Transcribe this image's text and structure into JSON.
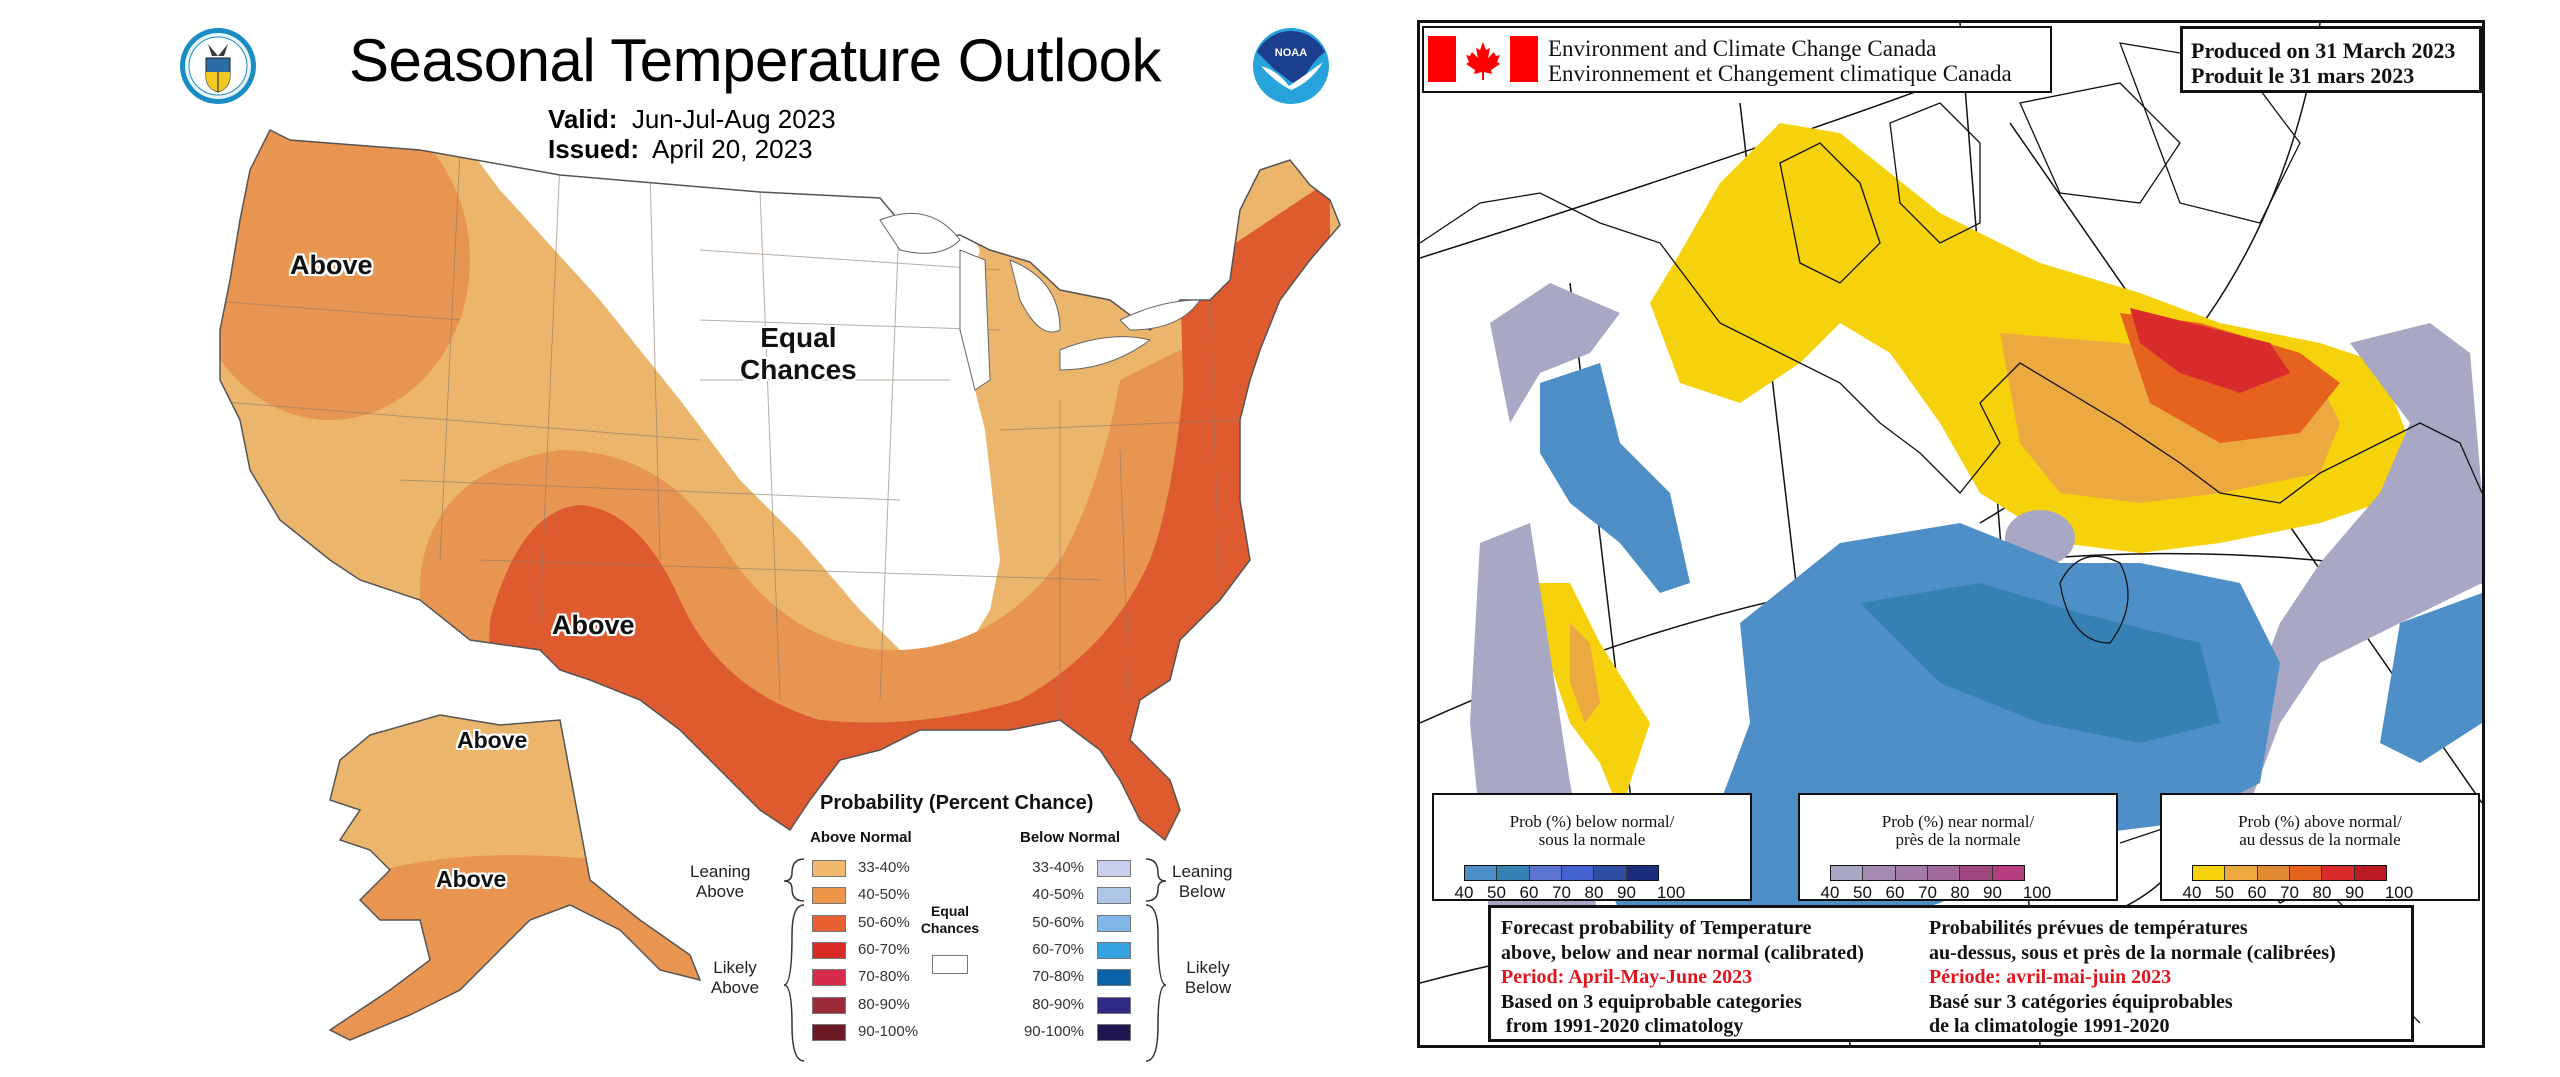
{
  "noaa_outlook": {
    "title": "Seasonal Temperature Outlook",
    "valid_label": "Valid:",
    "valid_value": "Jun-Jul-Aug 2023",
    "issued_label": "Issued:",
    "issued_value": "April 20, 2023",
    "logos": {
      "left": "doc-seal-icon",
      "right": "noaa-logo-icon",
      "noaa_text": "NOAA"
    },
    "map_labels": {
      "northwest": "Above",
      "equal_chances_line1": "Equal",
      "equal_chances_line2": "Chances",
      "southwest": "Above",
      "alaska_north": "Above",
      "alaska_south": "Above"
    },
    "legend": {
      "title": "Probability (Percent Chance)",
      "above_header": "Above Normal",
      "below_header": "Below Normal",
      "equal_line1": "Equal",
      "equal_line2": "Chances",
      "leaning_above": [
        "Leaning",
        "Above"
      ],
      "likely_above": [
        "Likely",
        "Above"
      ],
      "leaning_below": [
        "Leaning",
        "Below"
      ],
      "likely_below": [
        "Likely",
        "Below"
      ],
      "above": [
        {
          "label": "33-40%",
          "color": "#f0b96b"
        },
        {
          "label": "40-50%",
          "color": "#ed9649"
        },
        {
          "label": "50-60%",
          "color": "#e8602f"
        },
        {
          "label": "60-70%",
          "color": "#d92a25"
        },
        {
          "label": "70-80%",
          "color": "#d62b4b"
        },
        {
          "label": "80-90%",
          "color": "#9b2d3a"
        },
        {
          "label": "90-100%",
          "color": "#6a1a24"
        }
      ],
      "below": [
        {
          "label": "33-40%",
          "color": "#c9cfec"
        },
        {
          "label": "40-50%",
          "color": "#aec6e8"
        },
        {
          "label": "50-60%",
          "color": "#80b7e6"
        },
        {
          "label": "60-70%",
          "color": "#36a2e2"
        },
        {
          "label": "70-80%",
          "color": "#0a62a8"
        },
        {
          "label": "80-90%",
          "color": "#302a85"
        },
        {
          "label": "90-100%",
          "color": "#1d1650"
        }
      ]
    },
    "region_colors": {
      "leaning_above": "#ebb66c",
      "above_40_50": "#e89552",
      "above_50_60": "#de5a2f",
      "equal_chances": "#ffffff"
    }
  },
  "eccc_outlook": {
    "agency_en": "Environment and Climate Change Canada",
    "agency_fr": "Environnement et Changement climatique Canada",
    "produced_en": "Produced on 31 March 2023",
    "produced_fr": "Produit le 31 mars 2023",
    "flag_icon": "canada-flag-icon",
    "legends": [
      {
        "title_line1": "Prob (%) below normal/",
        "title_line2": "sous la normale",
        "colors": [
          "#4e8fc8",
          "#3681b3",
          "#5e74d1",
          "#4462d2",
          "#2e4ea2",
          "#1c2c7c"
        ],
        "ticks": [
          "40",
          "50",
          "60",
          "70",
          "80",
          "90",
          "100"
        ]
      },
      {
        "title_line1": "Prob (%) near normal/",
        "title_line2": "près de la normale",
        "colors": [
          "#a8a7c4",
          "#a48bb4",
          "#a37ba6",
          "#a06a9a",
          "#a2467f",
          "#b63e7f"
        ],
        "ticks": [
          "40",
          "50",
          "60",
          "70",
          "80",
          "90",
          "100"
        ]
      },
      {
        "title_line1": "Prob (%) above normal/",
        "title_line2": "au dessus de la normale",
        "colors": [
          "#f5d20c",
          "#eca940",
          "#e38a35",
          "#e5621f",
          "#d92a2c",
          "#bb1c23"
        ],
        "ticks": [
          "40",
          "50",
          "60",
          "70",
          "80",
          "90",
          "100"
        ]
      }
    ],
    "info_en": {
      "line1": "Forecast probability of Temperature",
      "line2": "above, below and near normal (calibrated)",
      "period": "Period: April-May-June 2023",
      "line4": "Based on 3 equiprobable categories",
      "line5": " from 1991-2020 climatology"
    },
    "info_fr": {
      "line1": "Probabilités prévues de températures",
      "line2": "au-dessus, sous et près de la normale (calibrées)",
      "period": "Période: avril-mai-juin 2023",
      "line4": "Basé sur 3 catégories équiprobables",
      "line5": "de la climatologie 1991-2020"
    },
    "region_colors": {
      "above_40_50": "#f5d20c",
      "above_50_60": "#eca940",
      "above_70_80": "#e5621f",
      "above_80_90": "#d92a2c",
      "below_40_50": "#4e8fc8",
      "below_50_60": "#3681b3",
      "below_60_70": "#5e74d1",
      "near_40_50": "#a8a7c4",
      "near_50_60": "#9e8db0"
    }
  }
}
